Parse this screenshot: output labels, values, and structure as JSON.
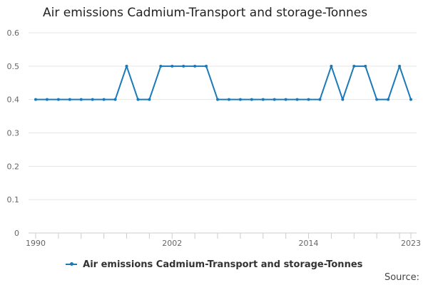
{
  "chart_data": {
    "type": "line",
    "title": "Air emissions Cadmium-Transport and storage-Tonnes",
    "xlabel": "",
    "ylabel": "",
    "x": [
      1990,
      1991,
      1992,
      1993,
      1994,
      1995,
      1996,
      1997,
      1998,
      1999,
      2000,
      2001,
      2002,
      2003,
      2004,
      2005,
      2006,
      2007,
      2008,
      2009,
      2010,
      2011,
      2012,
      2013,
      2014,
      2015,
      2016,
      2017,
      2018,
      2019,
      2020,
      2021,
      2022,
      2023
    ],
    "series": [
      {
        "name": "Air emissions Cadmium-Transport and storage-Tonnes",
        "values": [
          0.4,
          0.4,
          0.4,
          0.4,
          0.4,
          0.4,
          0.4,
          0.4,
          0.5,
          0.4,
          0.4,
          0.5,
          0.5,
          0.5,
          0.5,
          0.5,
          0.4,
          0.4,
          0.4,
          0.4,
          0.4,
          0.4,
          0.4,
          0.4,
          0.4,
          0.4,
          0.5,
          0.4,
          0.5,
          0.5,
          0.4,
          0.4,
          0.5,
          0.4
        ]
      }
    ],
    "ylim": [
      0,
      0.6
    ],
    "yticks": [
      "0",
      "0.1",
      "0.2",
      "0.3",
      "0.4",
      "0.5",
      "0.6"
    ],
    "xtick_labels": [
      "1990",
      "2002",
      "2014",
      "2023"
    ],
    "grid": true,
    "legend_position": "bottom",
    "color": "#1a7ab8"
  },
  "footer": {
    "source_label": "Source:"
  }
}
